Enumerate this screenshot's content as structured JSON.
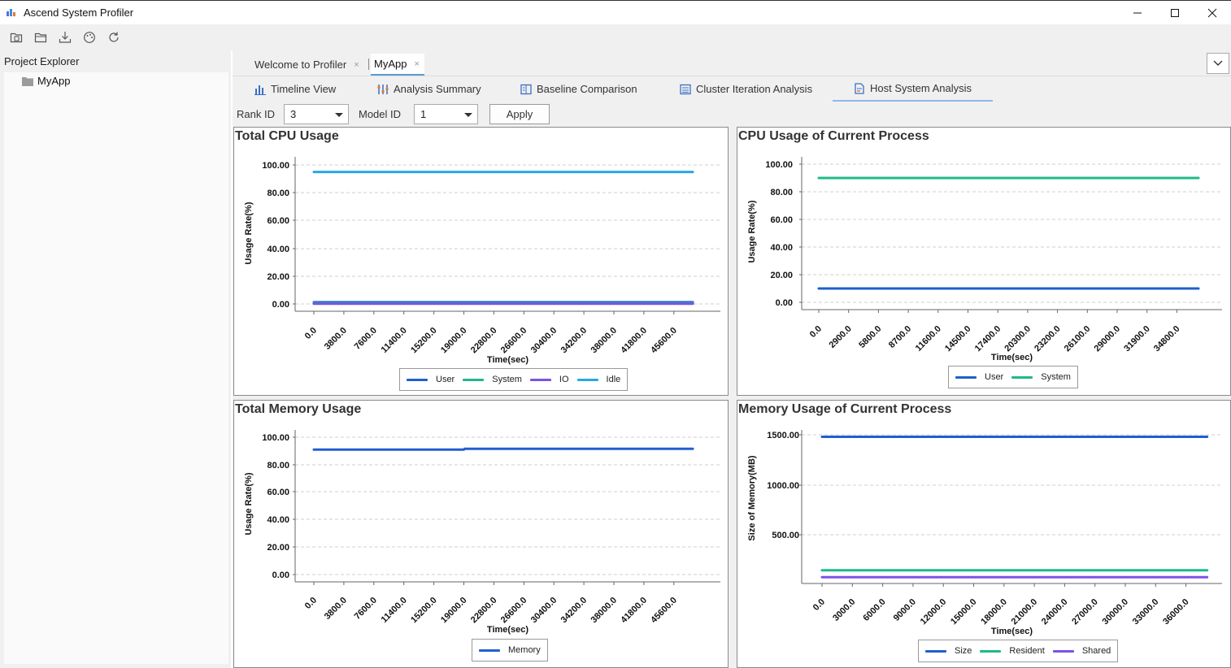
{
  "window": {
    "title": "Ascend System Profiler",
    "minimize": "—",
    "maximize": "☐",
    "close": "✕"
  },
  "toolbar": {
    "icons": [
      "new-project-icon",
      "open-folder-icon",
      "import-icon",
      "palette-icon",
      "refresh-icon"
    ]
  },
  "project_explorer": {
    "title": "Project Explorer",
    "items": [
      {
        "label": "MyApp",
        "icon": "folder-icon"
      }
    ]
  },
  "editor_tabs": [
    {
      "label": "Welcome to Profiler",
      "close": "×",
      "active": false
    },
    {
      "label": "MyApp",
      "close": "×",
      "active": true
    }
  ],
  "view_tabs": [
    {
      "label": "Timeline View",
      "icon": "bar-chart-icon",
      "active": false
    },
    {
      "label": "Analysis Summary",
      "icon": "analysis-icon",
      "active": false
    },
    {
      "label": "Baseline Comparison",
      "icon": "comparison-icon",
      "active": false
    },
    {
      "label": "Cluster Iteration Analysis",
      "icon": "cluster-icon",
      "active": false
    },
    {
      "label": "Host System Analysis",
      "icon": "host-icon",
      "active": true
    }
  ],
  "filters": {
    "rank_label": "Rank ID",
    "rank_value": "3",
    "model_label": "Model ID",
    "model_value": "1",
    "apply_label": "Apply"
  },
  "colors": {
    "user": "#1f5fcf",
    "system": "#1fb88a",
    "io": "#7b52e8",
    "idle": "#29a8e0",
    "memory": "#1f5fcf",
    "size": "#1f5fcf",
    "resident": "#1fb88a",
    "shared": "#7b52e8"
  },
  "panels": {
    "total_cpu": {
      "title": "Total CPU Usage"
    },
    "process_cpu": {
      "title": "CPU Usage of Current Process"
    },
    "total_mem": {
      "title": "Total Memory Usage"
    },
    "process_mem": {
      "title": "Memory Usage of Current Process"
    }
  },
  "chart_data": [
    {
      "id": "total_cpu",
      "type": "line",
      "title": "Total CPU Usage",
      "xlabel": "Time(sec)",
      "ylabel": "Usage Rate(%)",
      "ylim": [
        0,
        100
      ],
      "yticks": [
        "0.00",
        "20.00",
        "40.00",
        "60.00",
        "80.00",
        "100.00"
      ],
      "xticks": [
        "0.0",
        "3800.0",
        "7600.0",
        "11400.0",
        "15200.0",
        "19000.0",
        "22800.0",
        "26600.0",
        "30400.0",
        "34200.0",
        "38000.0",
        "41800.0",
        "45600.0"
      ],
      "xlim": [
        0,
        48000
      ],
      "grid": true,
      "legend_position": "bottom",
      "series": [
        {
          "name": "User",
          "color_key": "user",
          "x": [
            0,
            48000
          ],
          "values": [
            1.2,
            1.2
          ]
        },
        {
          "name": "System",
          "color_key": "system",
          "x": [
            0,
            48000
          ],
          "values": [
            0.5,
            0.5
          ]
        },
        {
          "name": "IO",
          "color_key": "io",
          "x": [
            0,
            48000
          ],
          "values": [
            0.1,
            0.1
          ]
        },
        {
          "name": "Idle",
          "color_key": "idle",
          "x": [
            0,
            48000
          ],
          "values": [
            95.0,
            95.0
          ]
        }
      ]
    },
    {
      "id": "process_cpu",
      "type": "line",
      "title": "CPU Usage of Current Process",
      "xlabel": "Time(sec)",
      "ylabel": "Usage Rate(%)",
      "ylim": [
        0,
        100
      ],
      "yticks": [
        "0.00",
        "20.00",
        "40.00",
        "60.00",
        "80.00",
        "100.00"
      ],
      "xticks": [
        "0.0",
        "2900.0",
        "5800.0",
        "8700.0",
        "11600.0",
        "14500.0",
        "17400.0",
        "20300.0",
        "23200.0",
        "26100.0",
        "29000.0",
        "31900.0",
        "34800.0"
      ],
      "xlim": [
        0,
        36900
      ],
      "grid": true,
      "legend_position": "bottom",
      "series": [
        {
          "name": "User",
          "color_key": "user",
          "x": [
            0,
            36900
          ],
          "values": [
            10.0,
            10.0
          ]
        },
        {
          "name": "System",
          "color_key": "system",
          "x": [
            0,
            36900
          ],
          "values": [
            90.0,
            90.0
          ]
        }
      ]
    },
    {
      "id": "total_mem",
      "type": "line",
      "title": "Total Memory Usage",
      "xlabel": "Time(sec)",
      "ylabel": "Usage Rate(%)",
      "ylim": [
        0,
        100
      ],
      "yticks": [
        "0.00",
        "20.00",
        "40.00",
        "60.00",
        "80.00",
        "100.00"
      ],
      "xticks": [
        "0.0",
        "3800.0",
        "7600.0",
        "11400.0",
        "15200.0",
        "19000.0",
        "22800.0",
        "26600.0",
        "30400.0",
        "34200.0",
        "38000.0",
        "41800.0",
        "45600.0"
      ],
      "xlim": [
        0,
        48000
      ],
      "grid": true,
      "legend_position": "bottom",
      "series": [
        {
          "name": "Memory",
          "color_key": "memory",
          "x": [
            0,
            19000,
            19100,
            48000
          ],
          "values": [
            91.0,
            91.0,
            91.6,
            91.6
          ]
        }
      ]
    },
    {
      "id": "process_mem",
      "type": "line",
      "title": "Memory Usage of Current Process",
      "xlabel": "Time(sec)",
      "ylabel": "Size of Memory(MB)",
      "ylim": [
        0,
        1500
      ],
      "yticks": [
        "500.00",
        "1000.00",
        "1500.00"
      ],
      "ytick_values": [
        500,
        1000,
        1500
      ],
      "xticks": [
        "0.0",
        "3000.0",
        "6000.0",
        "9000.0",
        "12000.0",
        "15000.0",
        "18000.0",
        "21000.0",
        "24000.0",
        "27000.0",
        "30000.0",
        "33000.0",
        "36000.0"
      ],
      "xlim": [
        0,
        38100
      ],
      "grid": true,
      "legend_position": "bottom",
      "series": [
        {
          "name": "Size",
          "color_key": "size",
          "x": [
            0,
            38100
          ],
          "values": [
            1480,
            1480
          ]
        },
        {
          "name": "Resident",
          "color_key": "resident",
          "x": [
            0,
            38100
          ],
          "values": [
            145,
            145
          ]
        },
        {
          "name": "Shared",
          "color_key": "shared",
          "x": [
            0,
            38100
          ],
          "values": [
            75,
            75
          ]
        }
      ]
    }
  ]
}
